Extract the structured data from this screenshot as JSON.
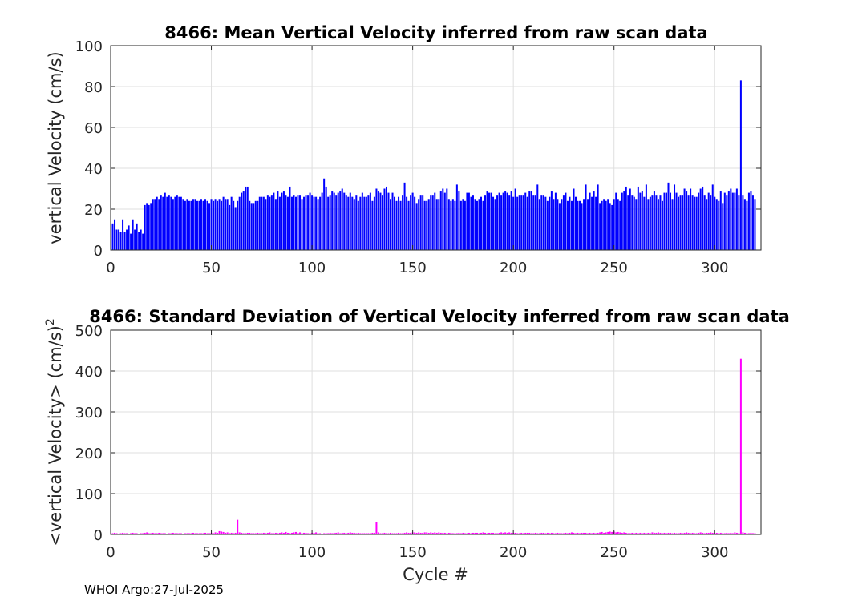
{
  "footer": "WHOI Argo:27-Jul-2025",
  "chart_data": [
    {
      "type": "bar",
      "title": "8466: Mean Vertical Velocity inferred from raw scan data",
      "xlabel": "",
      "ylabel": "vertical Velocity (cm/s)",
      "xlim": [
        0,
        323
      ],
      "ylim": [
        0,
        100
      ],
      "xticks": [
        0,
        50,
        100,
        150,
        200,
        250,
        300
      ],
      "yticks": [
        0,
        20,
        40,
        60,
        80,
        100
      ],
      "grid": true,
      "color": "#0000ff",
      "series": [
        {
          "x_start": 1,
          "values": [
            13,
            15,
            10,
            10,
            9,
            15,
            9,
            10,
            12,
            8,
            15,
            10,
            13,
            9,
            10,
            8,
            22,
            23,
            22,
            23,
            25,
            25,
            26,
            25,
            27,
            26,
            28,
            26,
            27,
            26,
            25,
            26,
            27,
            26,
            26,
            25,
            24,
            25,
            24,
            24,
            25,
            25,
            24,
            24,
            25,
            24,
            25,
            24,
            23,
            25,
            24,
            25,
            24,
            25,
            24,
            26,
            25,
            25,
            22,
            26,
            24,
            21,
            24,
            26,
            28,
            29,
            31,
            31,
            24,
            23,
            23,
            24,
            24,
            26,
            26,
            26,
            25,
            27,
            26,
            27,
            28,
            25,
            29,
            26,
            28,
            29,
            27,
            26,
            31,
            26,
            27,
            26,
            27,
            27,
            25,
            26,
            27,
            27,
            28,
            27,
            26,
            26,
            25,
            26,
            28,
            35,
            31,
            26,
            27,
            29,
            28,
            27,
            28,
            29,
            30,
            28,
            27,
            26,
            28,
            26,
            25,
            27,
            24,
            26,
            28,
            26,
            26,
            27,
            28,
            24,
            26,
            30,
            29,
            28,
            27,
            30,
            31,
            28,
            25,
            28,
            26,
            24,
            26,
            24,
            27,
            33,
            26,
            24,
            27,
            28,
            26,
            23,
            25,
            27,
            27,
            24,
            24,
            25,
            27,
            27,
            28,
            25,
            25,
            29,
            30,
            28,
            30,
            25,
            24,
            25,
            24,
            32,
            29,
            24,
            25,
            24,
            28,
            28,
            26,
            27,
            25,
            24,
            25,
            26,
            24,
            27,
            29,
            28,
            28,
            26,
            25,
            27,
            28,
            27,
            28,
            29,
            28,
            27,
            29,
            26,
            30,
            26,
            27,
            27,
            27,
            28,
            26,
            29,
            29,
            27,
            27,
            32,
            25,
            27,
            27,
            26,
            24,
            26,
            29,
            25,
            28,
            25,
            23,
            25,
            27,
            28,
            24,
            26,
            24,
            30,
            26,
            24,
            24,
            23,
            25,
            32,
            25,
            28,
            26,
            29,
            26,
            32,
            23,
            24,
            25,
            24,
            25,
            23,
            22,
            25,
            28,
            25,
            24,
            28,
            29,
            31,
            27,
            30,
            27,
            26,
            25,
            31,
            28,
            29,
            26,
            32,
            25,
            26,
            27,
            29,
            27,
            25,
            27,
            24,
            28,
            28,
            33,
            28,
            25,
            32,
            28,
            26,
            27,
            27,
            30,
            29,
            27,
            30,
            27,
            26,
            26,
            28,
            30,
            31,
            27,
            25,
            28,
            27,
            32,
            26,
            25,
            24,
            29,
            23,
            28,
            27,
            29,
            30,
            28,
            28,
            30,
            27,
            83,
            27,
            25,
            24,
            28,
            29,
            27,
            25
          ]
        }
      ]
    },
    {
      "type": "bar",
      "title": "8466: Standard Deviation of Vertical Velocity inferred from raw scan data",
      "xlabel": "Cycle #",
      "ylabel": "<vertical Velocity> (cm/s)",
      "ylabel_superscript": "2",
      "xlim": [
        0,
        323
      ],
      "ylim": [
        0,
        500
      ],
      "xticks": [
        0,
        50,
        100,
        150,
        200,
        250,
        300
      ],
      "yticks": [
        0,
        100,
        200,
        300,
        400,
        500
      ],
      "grid": true,
      "color": "#ff00ff",
      "series": [
        {
          "x_start": 1,
          "values": [
            3,
            4,
            3,
            2,
            3,
            4,
            3,
            3,
            2,
            3,
            4,
            3,
            3,
            2,
            3,
            3,
            4,
            5,
            3,
            3,
            4,
            3,
            3,
            4,
            3,
            3,
            3,
            2,
            3,
            3,
            4,
            3,
            3,
            3,
            3,
            2,
            3,
            3,
            3,
            3,
            4,
            3,
            3,
            3,
            3,
            3,
            4,
            3,
            3,
            4,
            3,
            5,
            4,
            8,
            7,
            6,
            4,
            5,
            3,
            4,
            3,
            4,
            36,
            5,
            4,
            3,
            3,
            4,
            4,
            3,
            3,
            3,
            4,
            3,
            3,
            4,
            3,
            4,
            5,
            3,
            3,
            4,
            3,
            4,
            5,
            4,
            6,
            4,
            3,
            4,
            5,
            6,
            4,
            5,
            3,
            4,
            4,
            3,
            3,
            4,
            4,
            5,
            3,
            3,
            2,
            3,
            3,
            3,
            4,
            3,
            4,
            4,
            5,
            3,
            4,
            4,
            3,
            4,
            5,
            4,
            4,
            3,
            4,
            3,
            3,
            3,
            3,
            3,
            3,
            4,
            4,
            30,
            5,
            3,
            3,
            4,
            3,
            3,
            4,
            3,
            3,
            3,
            4,
            3,
            3,
            4,
            5,
            4,
            4,
            5,
            5,
            4,
            5,
            4,
            4,
            5,
            5,
            4,
            5,
            4,
            5,
            4,
            5,
            4,
            4,
            4,
            3,
            4,
            4,
            3,
            3,
            3,
            4,
            3,
            4,
            3,
            3,
            4,
            3,
            4,
            4,
            4,
            3,
            4,
            5,
            4,
            3,
            4,
            4,
            4,
            3,
            3,
            4,
            5,
            4,
            5,
            4,
            5,
            4,
            4,
            4,
            3,
            3,
            4,
            3,
            4,
            4,
            4,
            3,
            3,
            4,
            3,
            3,
            4,
            4,
            3,
            4,
            3,
            4,
            3,
            3,
            4,
            3,
            3,
            3,
            4,
            3,
            4,
            5,
            4,
            3,
            4,
            3,
            4,
            4,
            4,
            3,
            4,
            3,
            4,
            3,
            4,
            5,
            6,
            4,
            5,
            6,
            7,
            6,
            7,
            5,
            6,
            5,
            4,
            5,
            4,
            3,
            3,
            4,
            3,
            4,
            3,
            4,
            3,
            4,
            3,
            4,
            3,
            5,
            4,
            4,
            5,
            4,
            3,
            4,
            3,
            4,
            4,
            3,
            4,
            3,
            3,
            4,
            3,
            4,
            5,
            4,
            3,
            4,
            3,
            3,
            4,
            5,
            4,
            3,
            4,
            4,
            5,
            4,
            3,
            4,
            3,
            4,
            3,
            3,
            4,
            3,
            4,
            3,
            5,
            4,
            3,
            430,
            5,
            4,
            3,
            3,
            4,
            3,
            3
          ]
        }
      ]
    }
  ]
}
